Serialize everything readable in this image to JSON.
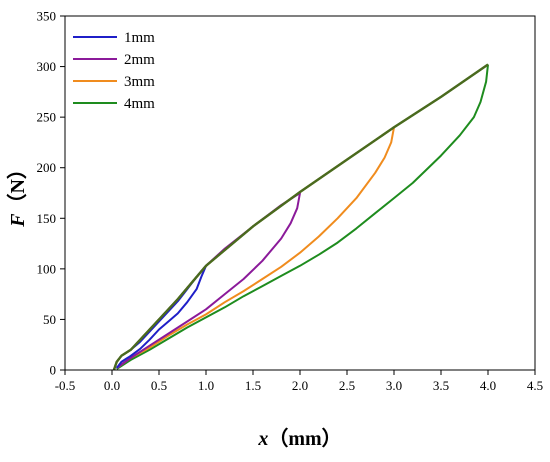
{
  "chart_data": {
    "type": "line",
    "title": "",
    "xlabel": {
      "var": "x",
      "unit": "（mm）"
    },
    "ylabel": {
      "var": "F",
      "unit": "（N）"
    },
    "xlim": [
      -0.5,
      4.5
    ],
    "ylim": [
      0,
      350
    ],
    "xticks": [
      "-0.5",
      "0.0",
      "0.5",
      "1.0",
      "1.5",
      "2.0",
      "2.5",
      "3.0",
      "3.5",
      "4.0",
      "4.5"
    ],
    "yticks": [
      "0",
      "50",
      "100",
      "150",
      "200",
      "250",
      "300",
      "350"
    ],
    "grid": false,
    "legend_position": "top-left",
    "series": [
      {
        "name": "1mm",
        "color": "#1f1fc8",
        "loading": [
          [
            0.02,
            0
          ],
          [
            0.05,
            8
          ],
          [
            0.1,
            14
          ],
          [
            0.2,
            20
          ],
          [
            0.3,
            28
          ],
          [
            0.4,
            38
          ],
          [
            0.5,
            48
          ],
          [
            0.6,
            58
          ],
          [
            0.7,
            68
          ],
          [
            0.8,
            80
          ],
          [
            0.9,
            92
          ],
          [
            1.0,
            103
          ]
        ],
        "unloading": [
          [
            1.0,
            103
          ],
          [
            0.95,
            92
          ],
          [
            0.9,
            80
          ],
          [
            0.8,
            67
          ],
          [
            0.7,
            56
          ],
          [
            0.6,
            48
          ],
          [
            0.5,
            40
          ],
          [
            0.4,
            30
          ],
          [
            0.3,
            21
          ],
          [
            0.2,
            14
          ],
          [
            0.1,
            8
          ],
          [
            0.05,
            2
          ]
        ]
      },
      {
        "name": "2mm",
        "color": "#8b1a9a",
        "loading": [
          [
            0.02,
            0
          ],
          [
            0.05,
            8
          ],
          [
            0.1,
            14
          ],
          [
            0.2,
            20
          ],
          [
            0.3,
            30
          ],
          [
            0.5,
            50
          ],
          [
            0.7,
            70
          ],
          [
            1.0,
            103
          ],
          [
            1.2,
            120
          ],
          [
            1.5,
            142
          ],
          [
            1.8,
            163
          ],
          [
            2.0,
            175
          ]
        ],
        "unloading": [
          [
            2.0,
            175
          ],
          [
            1.97,
            160
          ],
          [
            1.9,
            145
          ],
          [
            1.8,
            130
          ],
          [
            1.6,
            108
          ],
          [
            1.4,
            90
          ],
          [
            1.2,
            75
          ],
          [
            1.0,
            60
          ],
          [
            0.8,
            48
          ],
          [
            0.6,
            36
          ],
          [
            0.4,
            24
          ],
          [
            0.2,
            12
          ],
          [
            0.05,
            2
          ]
        ]
      },
      {
        "name": "3mm",
        "color": "#f08c1e",
        "loading": [
          [
            0.02,
            0
          ],
          [
            0.05,
            8
          ],
          [
            0.1,
            14
          ],
          [
            0.2,
            20
          ],
          [
            0.3,
            30
          ],
          [
            0.5,
            50
          ],
          [
            0.7,
            70
          ],
          [
            1.0,
            103
          ],
          [
            1.5,
            142
          ],
          [
            2.0,
            176
          ],
          [
            2.5,
            208
          ],
          [
            3.0,
            240
          ]
        ],
        "unloading": [
          [
            3.0,
            240
          ],
          [
            2.97,
            225
          ],
          [
            2.9,
            210
          ],
          [
            2.8,
            195
          ],
          [
            2.6,
            170
          ],
          [
            2.4,
            150
          ],
          [
            2.2,
            132
          ],
          [
            2.0,
            116
          ],
          [
            1.8,
            102
          ],
          [
            1.6,
            90
          ],
          [
            1.4,
            78
          ],
          [
            1.2,
            67
          ],
          [
            1.0,
            55
          ],
          [
            0.8,
            45
          ],
          [
            0.6,
            34
          ],
          [
            0.4,
            22
          ],
          [
            0.2,
            12
          ],
          [
            0.05,
            2
          ]
        ]
      },
      {
        "name": "4mm",
        "color": "#1e8c1e",
        "loading": [
          [
            0.02,
            0
          ],
          [
            0.05,
            8
          ],
          [
            0.1,
            14
          ],
          [
            0.2,
            20
          ],
          [
            0.3,
            30
          ],
          [
            0.5,
            50
          ],
          [
            0.7,
            70
          ],
          [
            1.0,
            103
          ],
          [
            1.5,
            142
          ],
          [
            2.0,
            176
          ],
          [
            2.5,
            208
          ],
          [
            3.0,
            240
          ],
          [
            3.5,
            270
          ],
          [
            4.0,
            302
          ]
        ],
        "unloading": [
          [
            4.0,
            302
          ],
          [
            3.98,
            285
          ],
          [
            3.92,
            265
          ],
          [
            3.85,
            250
          ],
          [
            3.7,
            232
          ],
          [
            3.5,
            212
          ],
          [
            3.2,
            185
          ],
          [
            3.0,
            170
          ],
          [
            2.8,
            155
          ],
          [
            2.6,
            140
          ],
          [
            2.4,
            126
          ],
          [
            2.2,
            114
          ],
          [
            2.0,
            103
          ],
          [
            1.8,
            93
          ],
          [
            1.6,
            83
          ],
          [
            1.4,
            73
          ],
          [
            1.2,
            62
          ],
          [
            1.0,
            52
          ],
          [
            0.8,
            42
          ],
          [
            0.6,
            31
          ],
          [
            0.4,
            20
          ],
          [
            0.2,
            10
          ],
          [
            0.05,
            1
          ]
        ]
      }
    ]
  }
}
